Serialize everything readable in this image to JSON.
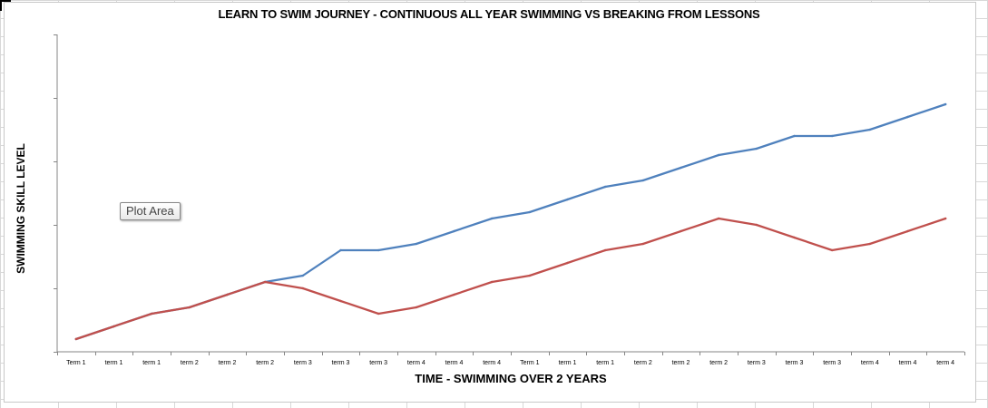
{
  "chart_data": {
    "type": "line",
    "title": "LEARN TO SWIM JOURNEY - CONTINUOUS ALL YEAR SWIMMING VS BREAKING FROM LESSONS",
    "xlabel": "TIME - SWIMMING OVER 2 YEARS",
    "ylabel": "SWIMMING SKILL LEVEL",
    "categories": [
      "Term 1",
      "term 1",
      "term 1",
      "term 2",
      "term 2",
      "term 2",
      "term 3",
      "term 3",
      "term 3",
      "term 4",
      "term 4",
      "term 4",
      "Term 1",
      "term 1",
      "term 1",
      "term 2",
      "term 2",
      "term 2",
      "term 3",
      "term 3",
      "term 3",
      "term 4",
      "term 4",
      "term 4"
    ],
    "ylim": [
      0,
      5
    ],
    "y_ticks": [
      0,
      1,
      2,
      3,
      4,
      5
    ],
    "grid": false,
    "legend": "none",
    "series": [
      {
        "color": "#4f81bd",
        "values": [
          0.2,
          0.4,
          0.6,
          0.7,
          0.9,
          1.1,
          1.2,
          1.6,
          1.6,
          1.7,
          1.9,
          2.1,
          2.2,
          2.4,
          2.6,
          2.7,
          2.9,
          3.1,
          3.2,
          3.4,
          3.4,
          3.5,
          3.7,
          3.9
        ]
      },
      {
        "color": "#c0504d",
        "values": [
          0.2,
          0.4,
          0.6,
          0.7,
          0.9,
          1.1,
          1.0,
          0.8,
          0.6,
          0.7,
          0.9,
          1.1,
          1.2,
          1.4,
          1.6,
          1.7,
          1.9,
          2.1,
          2.0,
          1.8,
          1.6,
          1.7,
          1.9,
          2.1
        ]
      }
    ]
  },
  "tooltip": {
    "label": "Plot Area"
  }
}
